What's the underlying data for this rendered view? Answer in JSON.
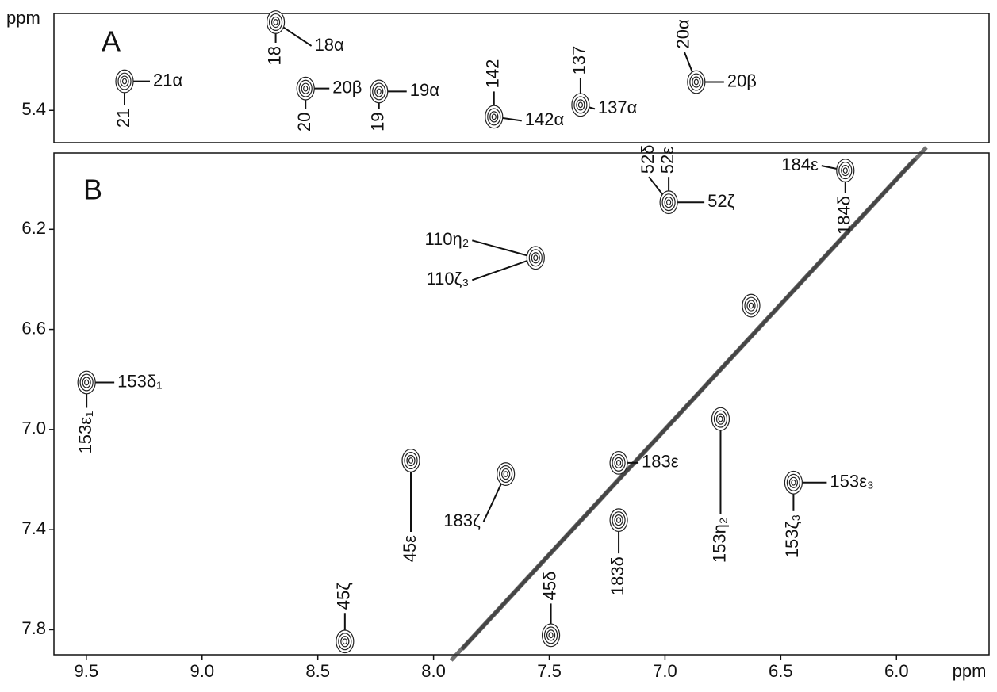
{
  "chart_data": [
    {
      "type": "scatter",
      "title": "A",
      "ylabel": "ppm",
      "xlim": [
        9.64,
        5.6
      ],
      "ylim": [
        5.01,
        5.53
      ],
      "yticks": [
        5.4
      ],
      "x": [
        9.335,
        8.682,
        8.553,
        8.236,
        7.739,
        7.365,
        6.865
      ],
      "y": [
        5.283,
        5.045,
        5.312,
        5.324,
        5.426,
        5.378,
        5.286
      ],
      "peak_labels": [
        [
          "21α",
          "21"
        ],
        [
          "18",
          "18α"
        ],
        [
          "20β",
          "20"
        ],
        [
          "19α",
          "19"
        ],
        [
          "142α",
          "142"
        ],
        [
          "137α",
          "137"
        ],
        [
          "20β",
          "20α"
        ]
      ]
    },
    {
      "type": "scatter",
      "title": "B",
      "xlabel": "ppm",
      "xlim": [
        9.64,
        5.6
      ],
      "ylim": [
        5.895,
        7.9
      ],
      "xticks": [
        9.5,
        {
          "value": 9,
          "label": "9.0"
        },
        8.5,
        {
          "value": 8,
          "label": "8.0"
        },
        7.5,
        {
          "value": 7,
          "label": "7.0"
        },
        6.5,
        {
          "value": 6,
          "label": "6.0"
        }
      ],
      "yticks": [
        6.2,
        6.6,
        {
          "value": 7,
          "label": "7.0"
        },
        7.4,
        7.8
      ],
      "x": [
        9.499,
        7.559,
        6.984,
        6.628,
        6.221,
        6.445,
        6.76,
        7.2,
        7.2,
        7.688,
        8.383,
        7.493,
        8.098
      ],
      "y": [
        6.812,
        6.314,
        6.092,
        6.505,
        5.965,
        7.212,
        6.958,
        7.133,
        7.362,
        7.178,
        7.847,
        7.822,
        7.124
      ],
      "peak_labels": [
        [
          "153δ₁",
          "153ε₁"
        ],
        [
          "110η₂",
          "110ζ₃"
        ],
        [
          "52δ",
          "52ε",
          "52ζ"
        ],
        [],
        [
          "184δ",
          "184ε"
        ],
        [
          "153ε₃",
          "153ζ₃"
        ],
        [
          "153η₂"
        ],
        [
          "183ε"
        ],
        [
          "183δ"
        ],
        [
          "183ζ"
        ],
        [
          "45ζ"
        ],
        [
          "45δ"
        ],
        [
          "45ε"
        ]
      ]
    }
  ]
}
